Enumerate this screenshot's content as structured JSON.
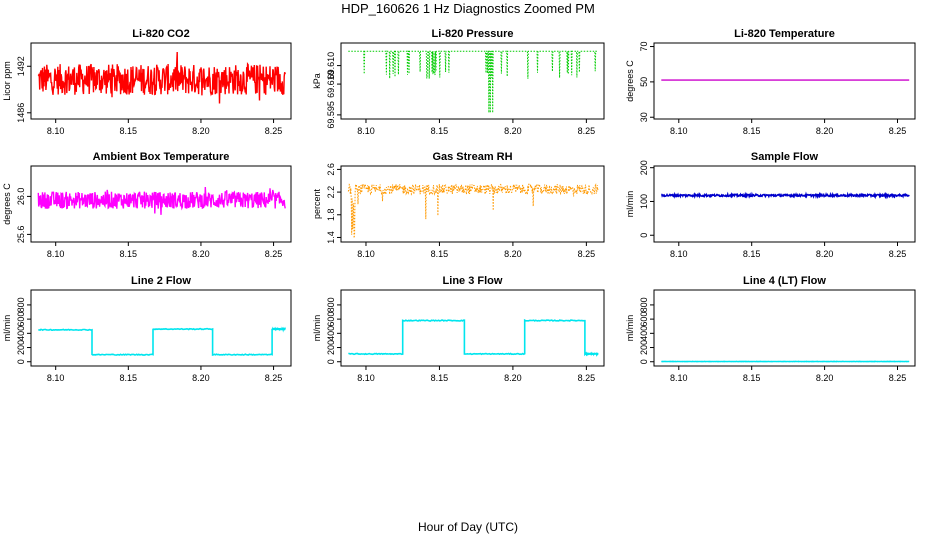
{
  "figure": {
    "title": "HDP_160626  1 Hz Diagnostics Zoomed PM",
    "xlabel": "Hour of Day (UTC)"
  },
  "chart_data": [
    {
      "type": "line",
      "title": "Li-820 CO2",
      "ylabel": "Licor ppm",
      "color": "#ff0000",
      "xlim": [
        8.083,
        8.262
      ],
      "ylim": [
        1485.2,
        1495.0
      ],
      "xticks": [
        "8.10",
        "8.15",
        "8.20",
        "8.25"
      ],
      "xtick_values": [
        8.1,
        8.15,
        8.2,
        8.25
      ],
      "yticks": [
        "1486",
        "1492"
      ],
      "ytick_values": [
        1486,
        1492
      ],
      "series": {
        "x_start": 8.088,
        "x_end": 8.258,
        "pattern": "noise",
        "base": 1490.3,
        "amplitude": 2.0,
        "spikes": 2.0
      }
    },
    {
      "type": "line",
      "title": "Li-820 Pressure",
      "ylabel": "kPa",
      "color": "#00cc00",
      "xlim": [
        8.083,
        8.262
      ],
      "ylim": [
        69.593,
        69.63
      ],
      "xticks": [
        "8.10",
        "8.15",
        "8.20",
        "8.25"
      ],
      "xtick_values": [
        8.1,
        8.15,
        8.2,
        8.25
      ],
      "yticks": [
        "69.595",
        "69.610"
      ],
      "ytick_values": [
        69.595,
        69.61
      ],
      "extra_ytick_labels": [
        {
          "label": "69.610",
          "value": 69.61
        }
      ],
      "series": {
        "x_start": 8.088,
        "x_end": 8.258,
        "pattern": "pressure",
        "base": 69.626,
        "drop": 69.6125,
        "deep_drop": 69.596
      }
    },
    {
      "type": "line",
      "title": "Li-820 Temperature",
      "ylabel": "degrees C",
      "color": "#cc00cc",
      "xlim": [
        8.083,
        8.262
      ],
      "ylim": [
        29,
        72
      ],
      "xticks": [
        "8.10",
        "8.15",
        "8.20",
        "8.25"
      ],
      "xtick_values": [
        8.1,
        8.15,
        8.2,
        8.25
      ],
      "yticks": [
        "30",
        "50",
        "70"
      ],
      "ytick_values": [
        30,
        50,
        70
      ],
      "series": {
        "x_start": 8.088,
        "x_end": 8.258,
        "pattern": "flat",
        "base": 51.0
      }
    },
    {
      "type": "line",
      "title": "Ambient Box Temperature",
      "ylabel": "degrees C",
      "color": "#ff00ff",
      "xlim": [
        8.083,
        8.262
      ],
      "ylim": [
        25.52,
        26.32
      ],
      "xticks": [
        "8.10",
        "8.15",
        "8.20",
        "8.25"
      ],
      "xtick_values": [
        8.1,
        8.15,
        8.2,
        8.25
      ],
      "yticks": [
        "25.6",
        "26.0"
      ],
      "ytick_values": [
        25.6,
        26.0
      ],
      "series": {
        "x_start": 8.088,
        "x_end": 8.258,
        "pattern": "noise",
        "base": 25.96,
        "amplitude": 0.09,
        "spikes": 0.11
      }
    },
    {
      "type": "scatter",
      "title": "Gas Stream RH",
      "ylabel": "percent",
      "color": "#ff9900",
      "xlim": [
        8.083,
        8.262
      ],
      "ylim": [
        1.32,
        2.66
      ],
      "xticks": [
        "8.10",
        "8.15",
        "8.20",
        "8.25"
      ],
      "xtick_values": [
        8.1,
        8.15,
        8.2,
        8.25
      ],
      "yticks": [
        "1.4",
        "1.8",
        "2.2",
        "2.6"
      ],
      "ytick_values": [
        1.4,
        1.8,
        2.2,
        2.6
      ],
      "series": {
        "x_start": 8.088,
        "x_end": 8.258,
        "pattern": "rh",
        "base": 2.25,
        "amplitude": 0.09,
        "min_dip": 1.36
      }
    },
    {
      "type": "line",
      "title": "Sample Flow",
      "ylabel": "ml/min",
      "color": "#0000cc",
      "xlim": [
        8.083,
        8.262
      ],
      "ylim": [
        -20,
        205
      ],
      "xticks": [
        "8.10",
        "8.15",
        "8.20",
        "8.25"
      ],
      "xtick_values": [
        8.1,
        8.15,
        8.2,
        8.25
      ],
      "yticks": [
        "0",
        "100",
        "200"
      ],
      "ytick_values": [
        0,
        100,
        200
      ],
      "series": {
        "x_start": 8.088,
        "x_end": 8.258,
        "pattern": "flat_noise",
        "base": 118,
        "amplitude": 3
      }
    },
    {
      "type": "line",
      "title": "Line 2 Flow",
      "ylabel": "ml/min",
      "color": "#00e5ee",
      "xlim": [
        8.083,
        8.262
      ],
      "ylim": [
        -60,
        1010
      ],
      "xticks": [
        "8.10",
        "8.15",
        "8.20",
        "8.25"
      ],
      "xtick_values": [
        8.1,
        8.15,
        8.2,
        8.25
      ],
      "yticks": [
        "0",
        "200",
        "400",
        "600",
        "800"
      ],
      "ytick_values": [
        0,
        200,
        400,
        600,
        800
      ],
      "series": {
        "x_start": 8.088,
        "x_end": 8.258,
        "pattern": "steps",
        "steps": [
          [
            8.088,
            8.125,
            450
          ],
          [
            8.125,
            8.167,
            100
          ],
          [
            8.167,
            8.208,
            460
          ],
          [
            8.208,
            8.249,
            100
          ],
          [
            8.249,
            8.258,
            460
          ]
        ]
      }
    },
    {
      "type": "line",
      "title": "Line 3 Flow",
      "ylabel": "ml/min",
      "color": "#00e5ee",
      "xlim": [
        8.083,
        8.262
      ],
      "ylim": [
        -60,
        1010
      ],
      "xticks": [
        "8.10",
        "8.15",
        "8.20",
        "8.25"
      ],
      "xtick_values": [
        8.1,
        8.15,
        8.2,
        8.25
      ],
      "yticks": [
        "0",
        "200",
        "400",
        "600",
        "800"
      ],
      "ytick_values": [
        0,
        200,
        400,
        600,
        800
      ],
      "series": {
        "x_start": 8.088,
        "x_end": 8.258,
        "pattern": "steps",
        "steps": [
          [
            8.088,
            8.125,
            110
          ],
          [
            8.125,
            8.167,
            580
          ],
          [
            8.167,
            8.208,
            110
          ],
          [
            8.208,
            8.249,
            580
          ],
          [
            8.249,
            8.258,
            110
          ]
        ]
      }
    },
    {
      "type": "line",
      "title": "Line 4 (LT) Flow",
      "ylabel": "ml/min",
      "color": "#00e5ee",
      "xlim": [
        8.083,
        8.262
      ],
      "ylim": [
        -60,
        1010
      ],
      "xticks": [
        "8.10",
        "8.15",
        "8.20",
        "8.25"
      ],
      "xtick_values": [
        8.1,
        8.15,
        8.2,
        8.25
      ],
      "yticks": [
        "0",
        "200",
        "400",
        "600",
        "800"
      ],
      "ytick_values": [
        0,
        200,
        400,
        600,
        800
      ],
      "series": {
        "x_start": 8.088,
        "x_end": 8.258,
        "pattern": "flat_noise",
        "base": 3,
        "amplitude": 1.5
      }
    }
  ]
}
